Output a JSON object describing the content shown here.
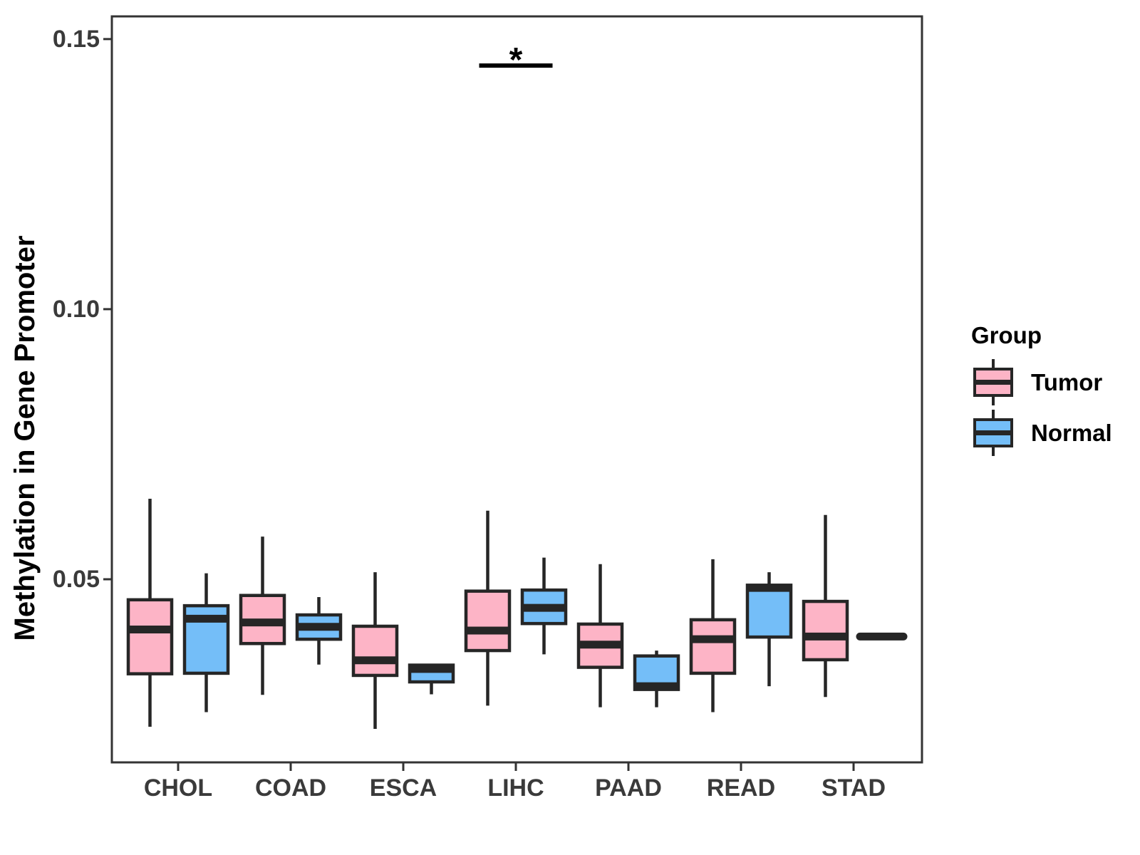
{
  "chart_data": {
    "type": "boxplot",
    "title": "",
    "xlabel": "",
    "ylabel": "Methylation in Gene Promoter",
    "ylim": [
      0.0161,
      0.1542
    ],
    "yticks": [
      0.05,
      0.1,
      0.15
    ],
    "ytick_labels": [
      "0.05",
      "0.10",
      "0.15"
    ],
    "grid": false,
    "panel_border": true,
    "categories": [
      "CHOL",
      "COAD",
      "ESCA",
      "LIHC",
      "PAAD",
      "READ",
      "STAD"
    ],
    "series": [
      {
        "name": "Tumor",
        "color": "#FDB4C6",
        "data": [
          {
            "category": "CHOL",
            "low": 0.0227,
            "q1": 0.0325,
            "median": 0.0407,
            "q3": 0.0462,
            "high": 0.0649
          },
          {
            "category": "COAD",
            "low": 0.0286,
            "q1": 0.0381,
            "median": 0.042,
            "q3": 0.047,
            "high": 0.0579
          },
          {
            "category": "ESCA",
            "low": 0.0223,
            "q1": 0.0322,
            "median": 0.035,
            "q3": 0.0413,
            "high": 0.0513
          },
          {
            "category": "LIHC",
            "low": 0.0266,
            "q1": 0.0368,
            "median": 0.0405,
            "q3": 0.0478,
            "high": 0.0627
          },
          {
            "category": "PAAD",
            "low": 0.0263,
            "q1": 0.0337,
            "median": 0.0379,
            "q3": 0.0417,
            "high": 0.0528
          },
          {
            "category": "READ",
            "low": 0.0254,
            "q1": 0.0326,
            "median": 0.0389,
            "q3": 0.0425,
            "high": 0.0537
          },
          {
            "category": "STAD",
            "low": 0.0282,
            "q1": 0.0351,
            "median": 0.0394,
            "q3": 0.0459,
            "high": 0.0619
          }
        ]
      },
      {
        "name": "Normal",
        "color": "#74BEF8",
        "data": [
          {
            "category": "CHOL",
            "low": 0.0254,
            "q1": 0.0326,
            "median": 0.0427,
            "q3": 0.0451,
            "high": 0.0511
          },
          {
            "category": "COAD",
            "low": 0.0342,
            "q1": 0.0389,
            "median": 0.0412,
            "q3": 0.0434,
            "high": 0.0467
          },
          {
            "category": "ESCA",
            "low": 0.0287,
            "q1": 0.031,
            "median": 0.0334,
            "q3": 0.0341,
            "high": 0.0341
          },
          {
            "category": "LIHC",
            "low": 0.0361,
            "q1": 0.0418,
            "median": 0.0447,
            "q3": 0.048,
            "high": 0.054
          },
          {
            "category": "PAAD",
            "low": 0.0263,
            "q1": 0.0296,
            "median": 0.0302,
            "q3": 0.0358,
            "high": 0.0368
          },
          {
            "category": "READ",
            "low": 0.0302,
            "q1": 0.0393,
            "median": 0.0484,
            "q3": 0.0489,
            "high": 0.0513
          },
          {
            "category": "STAD",
            "low": 0.0394,
            "q1": 0.0394,
            "median": 0.0394,
            "q3": 0.0394,
            "high": 0.0394
          }
        ]
      }
    ],
    "annotations": [
      {
        "label": "*",
        "category": "LIHC",
        "between": [
          "Tumor",
          "Normal"
        ],
        "y": 0.1451,
        "type": "significance-bar"
      }
    ],
    "legend": {
      "title": "Group",
      "position": "right",
      "entries": [
        "Tumor",
        "Normal"
      ]
    },
    "colors": {
      "box_stroke": "#262626",
      "panel_border": "#333333",
      "tick_text": "#3A3A3A",
      "annotation": "#000000"
    }
  }
}
